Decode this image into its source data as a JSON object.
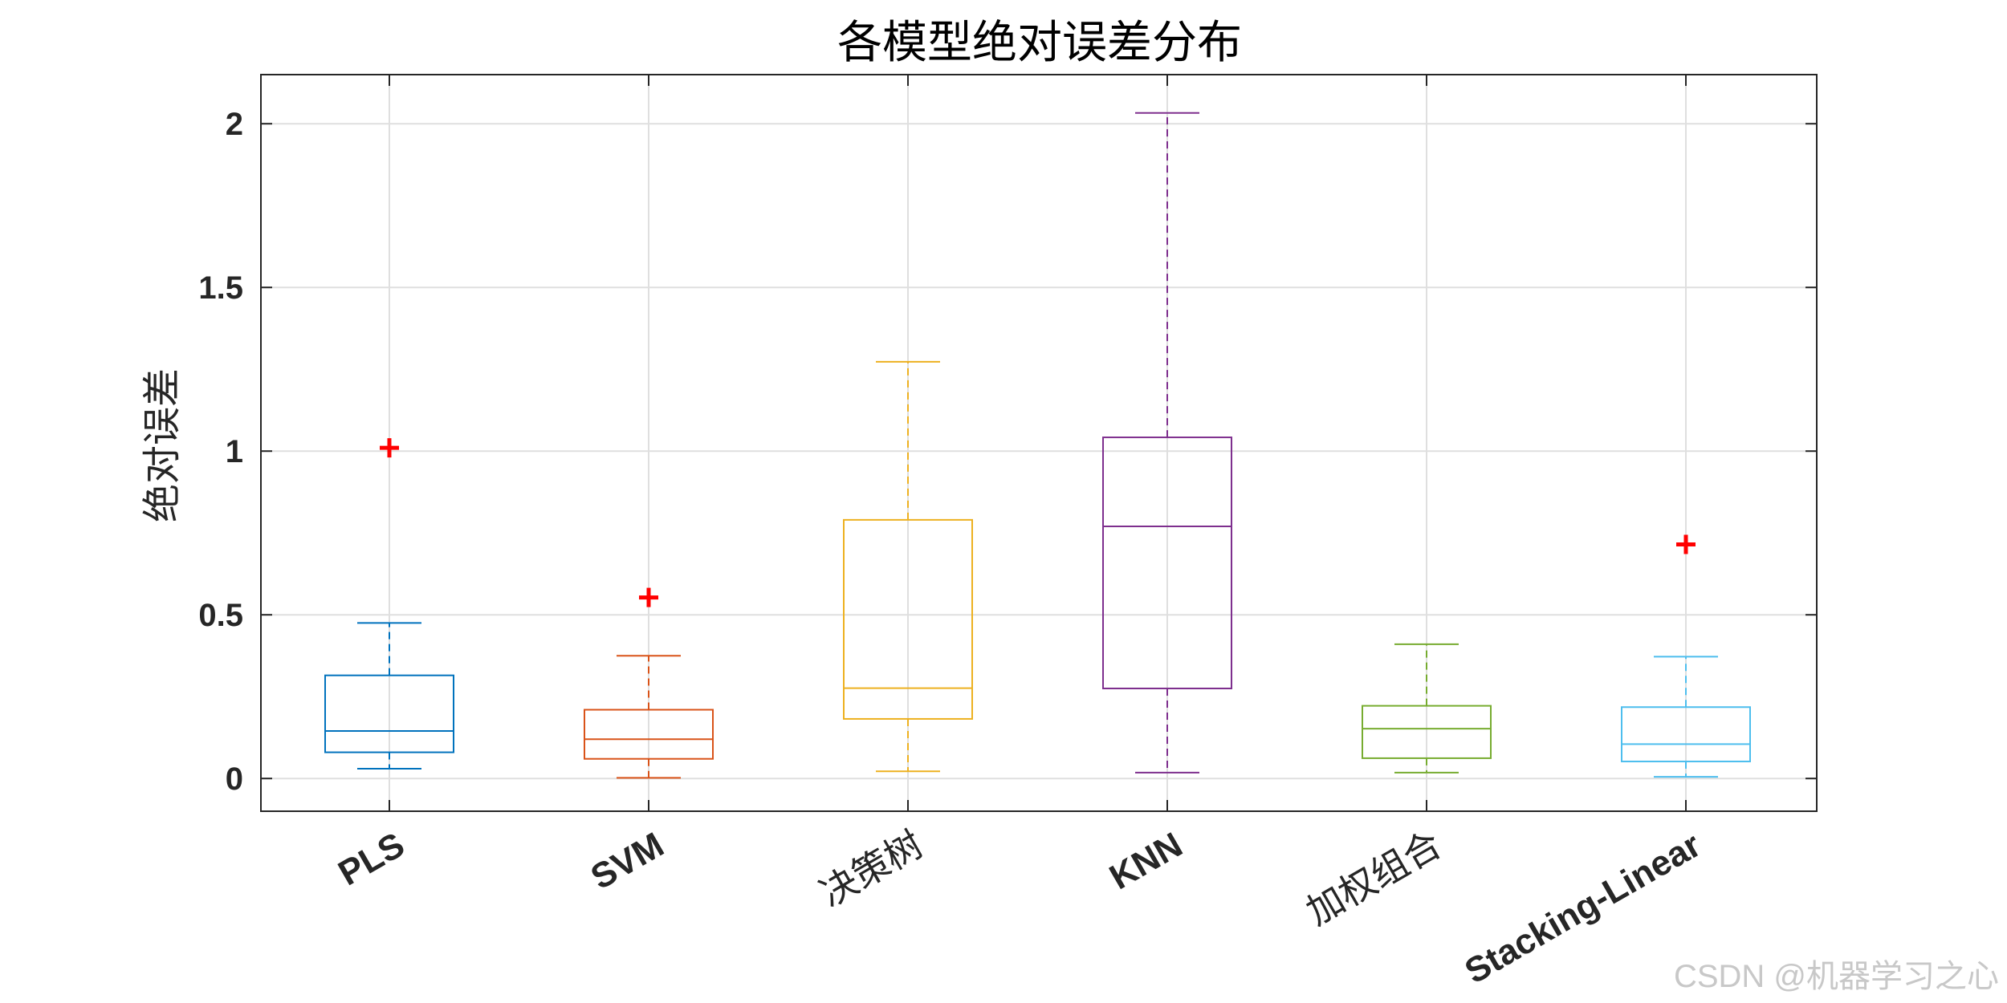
{
  "chart_data": {
    "type": "boxplot",
    "title": "各模型绝对误差分布",
    "ylabel": "绝对误差",
    "xlabel": "",
    "ylim": [
      -0.1,
      2.15
    ],
    "yticks": [
      0,
      0.5,
      1,
      1.5,
      2
    ],
    "ytick_labels": [
      "0",
      "0.5",
      "1",
      "1.5",
      "2"
    ],
    "grid": true,
    "categories": [
      "PLS",
      "SVM",
      "决策树",
      "KNN",
      "加权组合",
      "Stacking-Linear"
    ],
    "series": [
      {
        "color": "#0072bd",
        "whisker_low": 0.03,
        "q1": 0.08,
        "median": 0.145,
        "q3": 0.315,
        "whisker_high": 0.475,
        "outliers": [
          1.01
        ]
      },
      {
        "color": "#d95319",
        "whisker_low": 0.002,
        "q1": 0.06,
        "median": 0.12,
        "q3": 0.21,
        "whisker_high": 0.375,
        "outliers": [
          0.553
        ]
      },
      {
        "color": "#edb120",
        "whisker_low": 0.022,
        "q1": 0.182,
        "median": 0.276,
        "q3": 0.79,
        "whisker_high": 1.273,
        "outliers": []
      },
      {
        "color": "#7e2f8e",
        "whisker_low": 0.018,
        "q1": 0.275,
        "median": 0.77,
        "q3": 1.042,
        "whisker_high": 2.033,
        "outliers": []
      },
      {
        "color": "#77ac30",
        "whisker_low": 0.018,
        "q1": 0.062,
        "median": 0.152,
        "q3": 0.222,
        "whisker_high": 0.41,
        "outliers": []
      },
      {
        "color": "#4dbeee",
        "whisker_low": 0.005,
        "q1": 0.052,
        "median": 0.105,
        "q3": 0.218,
        "whisker_high": 0.372,
        "outliers": [
          0.715
        ]
      }
    ],
    "outlier_color": "#ff0000"
  },
  "watermark": "CSDN @机器学习之心"
}
